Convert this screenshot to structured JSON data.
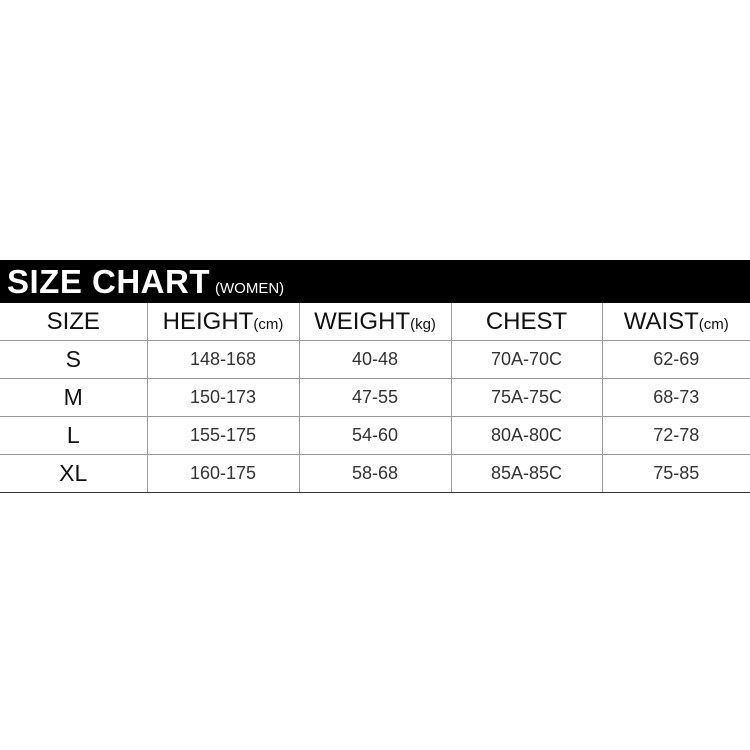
{
  "banner": {
    "title": "SIZE CHART",
    "subtitle": "(WOMEN)"
  },
  "table": {
    "headers": [
      {
        "label": "SIZE",
        "unit": ""
      },
      {
        "label": "HEIGHT",
        "unit": "(cm)"
      },
      {
        "label": "WEIGHT",
        "unit": "(kg)"
      },
      {
        "label": "CHEST",
        "unit": ""
      },
      {
        "label": "WAIST",
        "unit": "(cm)"
      }
    ],
    "rows": [
      [
        "S",
        "148-168",
        "40-48",
        "70A-70C",
        "62-69"
      ],
      [
        "M",
        "150-173",
        "47-55",
        "75A-75C",
        "68-73"
      ],
      [
        "L",
        "155-175",
        "54-60",
        "80A-80C",
        "72-78"
      ],
      [
        "XL",
        "160-175",
        "58-68",
        "85A-85C",
        "75-85"
      ]
    ]
  }
}
